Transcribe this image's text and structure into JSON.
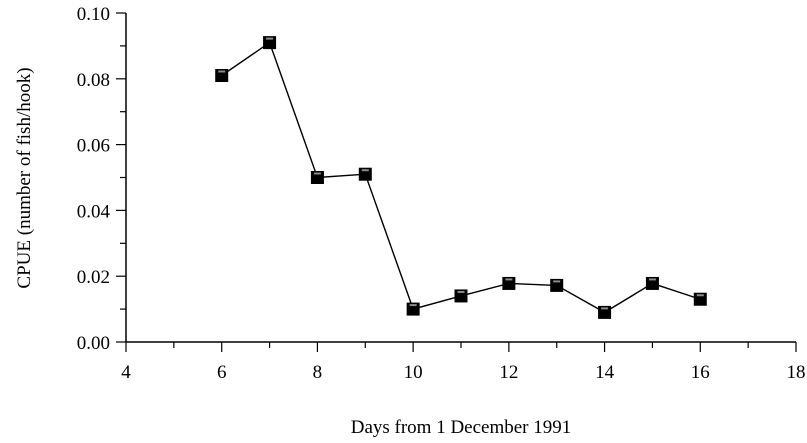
{
  "chart_data": {
    "type": "line",
    "title": "",
    "xlabel": "Days from 1 December 1991",
    "ylabel": "CPUE (number of fish/hook)",
    "xlim": [
      4,
      18
    ],
    "ylim": [
      0.0,
      0.1
    ],
    "x_major_ticks": [
      4,
      6,
      8,
      10,
      12,
      14,
      16,
      18
    ],
    "x_tick_labels": [
      "4",
      "6",
      "8",
      "10",
      "12",
      "14",
      "16",
      "18"
    ],
    "y_major_ticks": [
      0.0,
      0.02,
      0.04,
      0.06,
      0.08,
      0.1
    ],
    "y_tick_labels": [
      "0.00",
      "0.02",
      "0.04",
      "0.06",
      "0.08",
      "0.10"
    ],
    "grid": false,
    "legend": "none",
    "marker": "filled-square",
    "series": [
      {
        "x": [
          6,
          7,
          8,
          9,
          10,
          11,
          12,
          13,
          14,
          15,
          16
        ],
        "y": [
          0.081,
          0.091,
          0.05,
          0.051,
          0.01,
          0.014,
          0.0178,
          0.0172,
          0.009,
          0.0178,
          0.013
        ]
      }
    ],
    "colors": {
      "line": "#000000",
      "marker_fill": "#000000",
      "marker_edge": "#000000"
    }
  }
}
